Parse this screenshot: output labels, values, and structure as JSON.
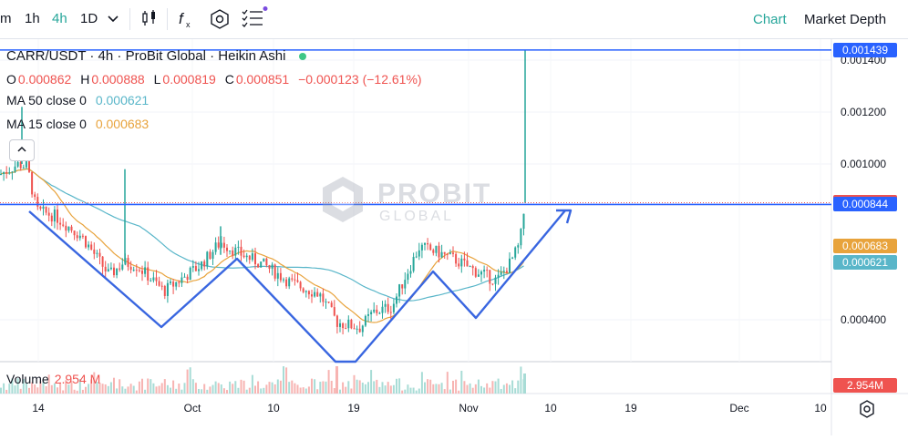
{
  "toolbar": {
    "intervals": [
      "m",
      "1h",
      "4h",
      "1D"
    ],
    "active_interval": "4h",
    "tabs": {
      "chart": "Chart",
      "market_depth": "Market Depth"
    }
  },
  "legend": {
    "title": "CARR/USDT · 4h · ProBit Global · Heikin Ashi",
    "o_label": "O",
    "o": "0.000862",
    "h_label": "H",
    "h": "0.000888",
    "l_label": "L",
    "l": "0.000819",
    "c_label": "C",
    "c": "0.000851",
    "change": "−0.000123 (−12.61%)",
    "ma50_label": "MA 50 close 0",
    "ma50_value": "0.000621",
    "ma15_label": "MA 15 close 0",
    "ma15_value": "0.000683"
  },
  "volume": {
    "label": "Volume",
    "value": "2.954 M",
    "tag": "2.954M"
  },
  "watermark": {
    "brand": "PROBIT",
    "sub": "GLOBAL"
  },
  "colors": {
    "up": "#26a69a",
    "down": "#ef5350",
    "ma50": "#59b6c9",
    "ma15": "#e8a33c",
    "line_blue": "#2962ff",
    "annotation_blue": "#3966e0"
  },
  "chart_data": {
    "type": "candlestick",
    "title": "CARR/USDT · 4h · ProBit Global · Heikin Ashi",
    "y_ticks": [
      "0.001400",
      "0.001200",
      "0.001000",
      "0.000400"
    ],
    "y_tick_values": [
      0.0014,
      0.0012,
      0.001,
      0.0004
    ],
    "ylim": [
      0.00027,
      0.00148
    ],
    "x_ticks": [
      "14",
      "Oct",
      "10",
      "19",
      "Nov",
      "10",
      "19",
      "Dec",
      "10"
    ],
    "price_tags": [
      {
        "label": "0.001439",
        "value": 0.001439,
        "color": "#2962ff"
      },
      {
        "label": "0.000851",
        "value": 0.000851,
        "color": "#ef5350"
      },
      {
        "label": "0.000844",
        "value": 0.000844,
        "color": "#2962ff"
      },
      {
        "label": "0.000683",
        "value": 0.000683,
        "color": "#e8a33c"
      },
      {
        "label": "0.000621",
        "value": 0.000621,
        "color": "#59b6c9"
      }
    ],
    "horizontal_lines": [
      0.001439,
      0.000844
    ],
    "series_close_approx": [
      {
        "x_label": "14",
        "value": 0.00101
      },
      {
        "x_label": "Oct",
        "value": 0.0005
      },
      {
        "x_label": "10",
        "value": 0.00061
      },
      {
        "x_label": "19",
        "value": 0.00035
      },
      {
        "x_label": "Nov",
        "value": 0.0006
      },
      {
        "x_label": "end",
        "value": 0.000851
      }
    ]
  }
}
